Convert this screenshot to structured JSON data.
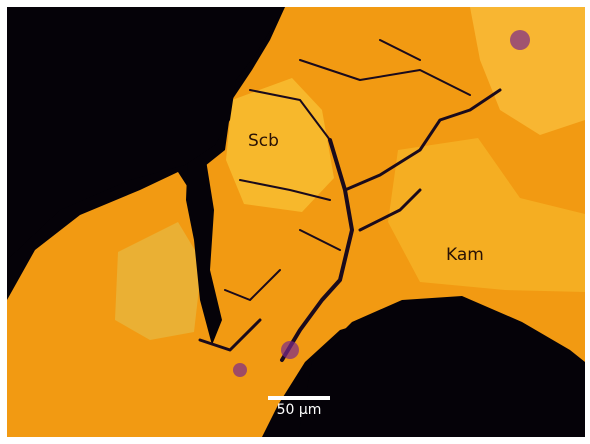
{
  "image": {
    "labels": [
      "Scb",
      "Kam"
    ],
    "scale_bar": "50 µm"
  }
}
